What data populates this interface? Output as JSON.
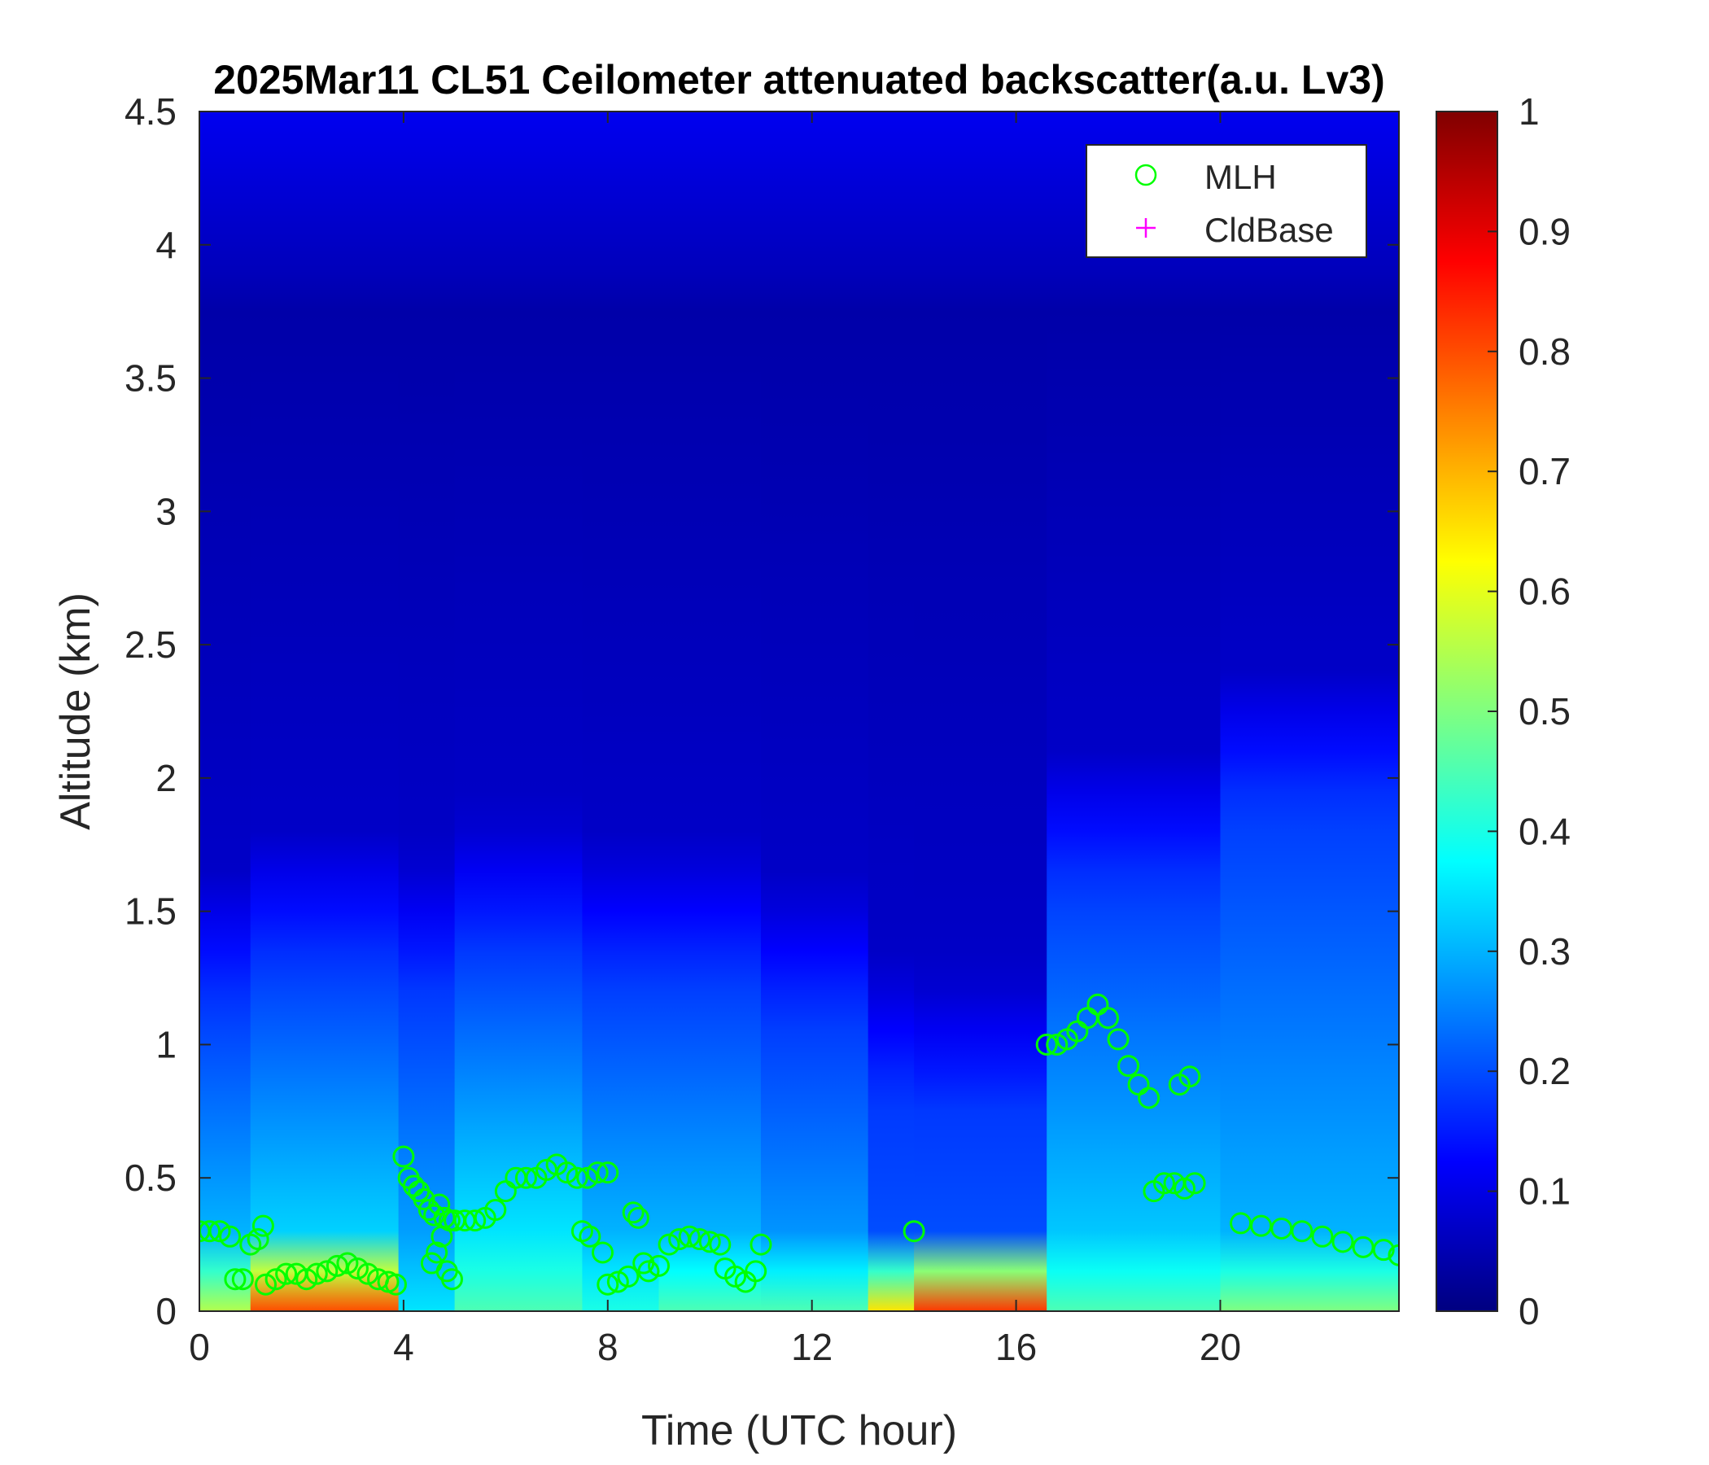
{
  "chart_data": {
    "type": "heatmap",
    "title": "2025Mar11 CL51 Ceilometer attenuated backscatter(a.u. Lv3)",
    "xlabel": "Time (UTC hour)",
    "ylabel": "Altitude (km)",
    "xlim": [
      0,
      23.5
    ],
    "ylim": [
      0,
      4.5
    ],
    "x_ticks": [
      "0",
      "4",
      "8",
      "12",
      "16",
      "20"
    ],
    "y_ticks": [
      "0",
      "0.5",
      "1",
      "1.5",
      "2",
      "2.5",
      "3",
      "3.5",
      "4",
      "4.5"
    ],
    "colorbar": {
      "range": [
        0,
        1
      ],
      "ticks": [
        "0",
        "0.1",
        "0.2",
        "0.3",
        "0.4",
        "0.5",
        "0.6",
        "0.7",
        "0.8",
        "0.9",
        "1"
      ],
      "colormap": "jet"
    },
    "legend": {
      "position": "top-right",
      "entries": [
        {
          "label": "MLH",
          "marker": "circle",
          "color": "#00ff00"
        },
        {
          "label": "CldBase",
          "marker": "plus",
          "color": "#ff00ff"
        }
      ]
    },
    "backscatter_profiles": [
      {
        "t_start": 0.0,
        "t_end": 1.0,
        "layer_top_km": 1.15,
        "surface_value": 0.55,
        "mid_value": 0.3
      },
      {
        "t_start": 1.0,
        "t_end": 3.9,
        "layer_top_km": 1.3,
        "surface_value": 0.8,
        "mid_value": 0.33
      },
      {
        "t_start": 3.9,
        "t_end": 5.0,
        "layer_top_km": 1.2,
        "surface_value": 0.35,
        "mid_value": 0.28
      },
      {
        "t_start": 5.0,
        "t_end": 7.5,
        "layer_top_km": 1.35,
        "surface_value": 0.45,
        "mid_value": 0.35
      },
      {
        "t_start": 7.5,
        "t_end": 9.0,
        "layer_top_km": 1.25,
        "surface_value": 0.4,
        "mid_value": 0.3
      },
      {
        "t_start": 9.0,
        "t_end": 11.0,
        "layer_top_km": 1.25,
        "surface_value": 0.45,
        "mid_value": 0.3
      },
      {
        "t_start": 11.0,
        "t_end": 13.1,
        "layer_top_km": 1.1,
        "surface_value": 0.45,
        "mid_value": 0.27
      },
      {
        "t_start": 13.1,
        "t_end": 14.0,
        "layer_top_km": 0.8,
        "surface_value": 0.65,
        "mid_value": 0.2
      },
      {
        "t_start": 14.0,
        "t_end": 16.6,
        "layer_top_km": 0.75,
        "surface_value": 0.82,
        "mid_value": 0.2
      },
      {
        "t_start": 16.6,
        "t_end": 20.0,
        "layer_top_km": 1.6,
        "surface_value": 0.45,
        "mid_value": 0.32
      },
      {
        "t_start": 20.0,
        "t_end": 23.5,
        "layer_top_km": 1.9,
        "surface_value": 0.5,
        "mid_value": 0.3
      }
    ],
    "series": [
      {
        "name": "MLH",
        "points": [
          [
            0.0,
            0.3
          ],
          [
            0.2,
            0.3
          ],
          [
            0.4,
            0.3
          ],
          [
            0.6,
            0.28
          ],
          [
            0.7,
            0.12
          ],
          [
            0.85,
            0.12
          ],
          [
            1.0,
            0.25
          ],
          [
            1.15,
            0.27
          ],
          [
            1.25,
            0.32
          ],
          [
            1.3,
            0.1
          ],
          [
            1.5,
            0.12
          ],
          [
            1.7,
            0.14
          ],
          [
            1.9,
            0.14
          ],
          [
            2.1,
            0.12
          ],
          [
            2.3,
            0.14
          ],
          [
            2.5,
            0.15
          ],
          [
            2.7,
            0.17
          ],
          [
            2.9,
            0.18
          ],
          [
            3.1,
            0.16
          ],
          [
            3.3,
            0.14
          ],
          [
            3.5,
            0.12
          ],
          [
            3.7,
            0.11
          ],
          [
            3.85,
            0.1
          ],
          [
            4.0,
            0.58
          ],
          [
            4.1,
            0.5
          ],
          [
            4.2,
            0.47
          ],
          [
            4.3,
            0.45
          ],
          [
            4.4,
            0.42
          ],
          [
            4.5,
            0.38
          ],
          [
            4.6,
            0.36
          ],
          [
            4.7,
            0.4
          ],
          [
            4.8,
            0.35
          ],
          [
            4.9,
            0.34
          ],
          [
            4.55,
            0.18
          ],
          [
            4.65,
            0.22
          ],
          [
            4.75,
            0.28
          ],
          [
            4.85,
            0.15
          ],
          [
            4.95,
            0.12
          ],
          [
            5.0,
            0.34
          ],
          [
            5.2,
            0.34
          ],
          [
            5.4,
            0.34
          ],
          [
            5.6,
            0.35
          ],
          [
            5.8,
            0.38
          ],
          [
            6.0,
            0.45
          ],
          [
            6.2,
            0.5
          ],
          [
            6.4,
            0.5
          ],
          [
            6.6,
            0.5
          ],
          [
            6.8,
            0.53
          ],
          [
            7.0,
            0.55
          ],
          [
            7.2,
            0.52
          ],
          [
            7.4,
            0.5
          ],
          [
            7.6,
            0.5
          ],
          [
            7.8,
            0.52
          ],
          [
            8.0,
            0.52
          ],
          [
            7.5,
            0.3
          ],
          [
            7.65,
            0.28
          ],
          [
            7.9,
            0.22
          ],
          [
            8.0,
            0.1
          ],
          [
            8.2,
            0.11
          ],
          [
            8.4,
            0.13
          ],
          [
            8.5,
            0.37
          ],
          [
            8.6,
            0.35
          ],
          [
            8.7,
            0.18
          ],
          [
            8.8,
            0.15
          ],
          [
            9.0,
            0.17
          ],
          [
            9.2,
            0.25
          ],
          [
            9.4,
            0.27
          ],
          [
            9.6,
            0.28
          ],
          [
            9.8,
            0.27
          ],
          [
            10.0,
            0.26
          ],
          [
            10.2,
            0.25
          ],
          [
            10.3,
            0.16
          ],
          [
            10.5,
            0.13
          ],
          [
            10.7,
            0.11
          ],
          [
            10.9,
            0.15
          ],
          [
            11.0,
            0.25
          ],
          [
            14.0,
            0.3
          ],
          [
            16.6,
            1.0
          ],
          [
            16.8,
            1.0
          ],
          [
            17.0,
            1.02
          ],
          [
            17.2,
            1.05
          ],
          [
            17.4,
            1.1
          ],
          [
            17.6,
            1.15
          ],
          [
            17.8,
            1.1
          ],
          [
            18.0,
            1.02
          ],
          [
            18.2,
            0.92
          ],
          [
            18.4,
            0.85
          ],
          [
            18.6,
            0.8
          ],
          [
            18.7,
            0.45
          ],
          [
            18.9,
            0.48
          ],
          [
            19.1,
            0.48
          ],
          [
            19.3,
            0.46
          ],
          [
            19.5,
            0.48
          ],
          [
            19.2,
            0.85
          ],
          [
            19.4,
            0.88
          ],
          [
            20.4,
            0.33
          ],
          [
            20.8,
            0.32
          ],
          [
            21.2,
            0.31
          ],
          [
            21.6,
            0.3
          ],
          [
            22.0,
            0.28
          ],
          [
            22.4,
            0.26
          ],
          [
            22.8,
            0.24
          ],
          [
            23.2,
            0.23
          ],
          [
            23.5,
            0.21
          ]
        ]
      },
      {
        "name": "CldBase",
        "points": []
      }
    ]
  }
}
